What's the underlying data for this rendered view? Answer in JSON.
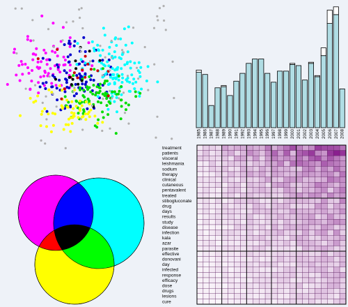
{
  "chart_data": [
    {
      "type": "scatter",
      "title": "",
      "xlabel": "",
      "ylabel": "",
      "series": [
        {
          "name": "",
          "color": "#ff00ff",
          "cluster": "left",
          "count": 80
        },
        {
          "name": "",
          "color": "#0000cc",
          "cluster": "center",
          "count": 90
        },
        {
          "name": "",
          "color": "#00ffff",
          "cluster": "right",
          "count": 120
        },
        {
          "name": "",
          "color": "#00dd00",
          "cluster": "lower-right",
          "count": 90
        },
        {
          "name": "",
          "color": "#ffff00",
          "cluster": "lower-left",
          "count": 60
        },
        {
          "name": "",
          "color": "#cc0000",
          "cluster": "center",
          "count": 15
        },
        {
          "name": "",
          "color": "#000000",
          "cluster": "center",
          "count": 12
        },
        {
          "name": "",
          "color": "#b0b0b0",
          "cluster": "outer",
          "count": 70
        }
      ]
    },
    {
      "type": "bar",
      "title": "",
      "xlabel": "",
      "ylabel": "",
      "categories": [
        "1985",
        "1986",
        "1987",
        "1988",
        "1989",
        "1990",
        "1991",
        "1992",
        "1993",
        "1994",
        "1995",
        "1996",
        "1997",
        "1998",
        "1999",
        "2000",
        "2001",
        "2002",
        "2003",
        "2004",
        "2005",
        "2006",
        "2007",
        "2008"
      ],
      "series": [
        {
          "name": "",
          "color": "#b0dde4",
          "values": [
            50,
            48,
            20,
            36,
            37,
            29,
            42,
            49,
            58,
            62,
            62,
            49,
            41,
            51,
            51,
            57,
            56,
            43,
            58,
            46,
            65,
            94,
            102,
            35
          ]
        },
        {
          "name": "",
          "color": "#ffffff",
          "values": [
            2,
            0,
            0,
            0,
            1,
            0,
            0,
            0,
            0,
            0,
            0,
            0,
            0,
            0,
            0,
            1,
            0,
            0,
            1,
            1,
            7,
            12,
            7,
            0
          ]
        }
      ],
      "ylim": [
        0,
        112
      ]
    },
    {
      "type": "heatmap",
      "title": "",
      "xlabel": "",
      "ylabel": "",
      "columns": [
        "1985",
        "1986",
        "1987",
        "1988",
        "1989",
        "1990",
        "1991",
        "1992",
        "1993",
        "1994",
        "1995",
        "1996",
        "1997",
        "1998",
        "1999",
        "2000",
        "2001",
        "2002",
        "2003",
        "2004",
        "2005",
        "2006",
        "2007",
        "2008"
      ],
      "rows": [
        "treatment",
        "patients",
        "visceral",
        "leishmania",
        "sodium",
        "therapy",
        "clinical",
        "cutaneous",
        "pentavalent",
        "treated",
        "stibogluconate",
        "drug",
        "days",
        "results",
        "study",
        "disease",
        "infection",
        "kala",
        "azar",
        "parasite",
        "effective",
        "donovani",
        "day",
        "infected",
        "response",
        "efficacy",
        "dose",
        "drugs",
        "lesions",
        "cure"
      ],
      "base_intensity": [
        0.82,
        0.75,
        0.62,
        0.6,
        0.5,
        0.55,
        0.48,
        0.45,
        0.44,
        0.42,
        0.4,
        0.4,
        0.38,
        0.38,
        0.37,
        0.36,
        0.35,
        0.33,
        0.33,
        0.3,
        0.3,
        0.28,
        0.28,
        0.27,
        0.26,
        0.25,
        0.25,
        0.24,
        0.23,
        0.22
      ],
      "color_low": "#ffffff",
      "color_high": "#8a1f8f"
    },
    {
      "type": "venn",
      "title": "",
      "sets": [
        {
          "name": "",
          "color": "#ff00ff"
        },
        {
          "name": "",
          "color": "#00ffff"
        },
        {
          "name": "",
          "color": "#ffff00"
        }
      ],
      "overlap_colors": {
        "magenta_cyan": "#0000ff",
        "cyan_yellow": "#00ff00",
        "magenta_yellow": "#ff0000",
        "all": "#000000"
      }
    }
  ]
}
